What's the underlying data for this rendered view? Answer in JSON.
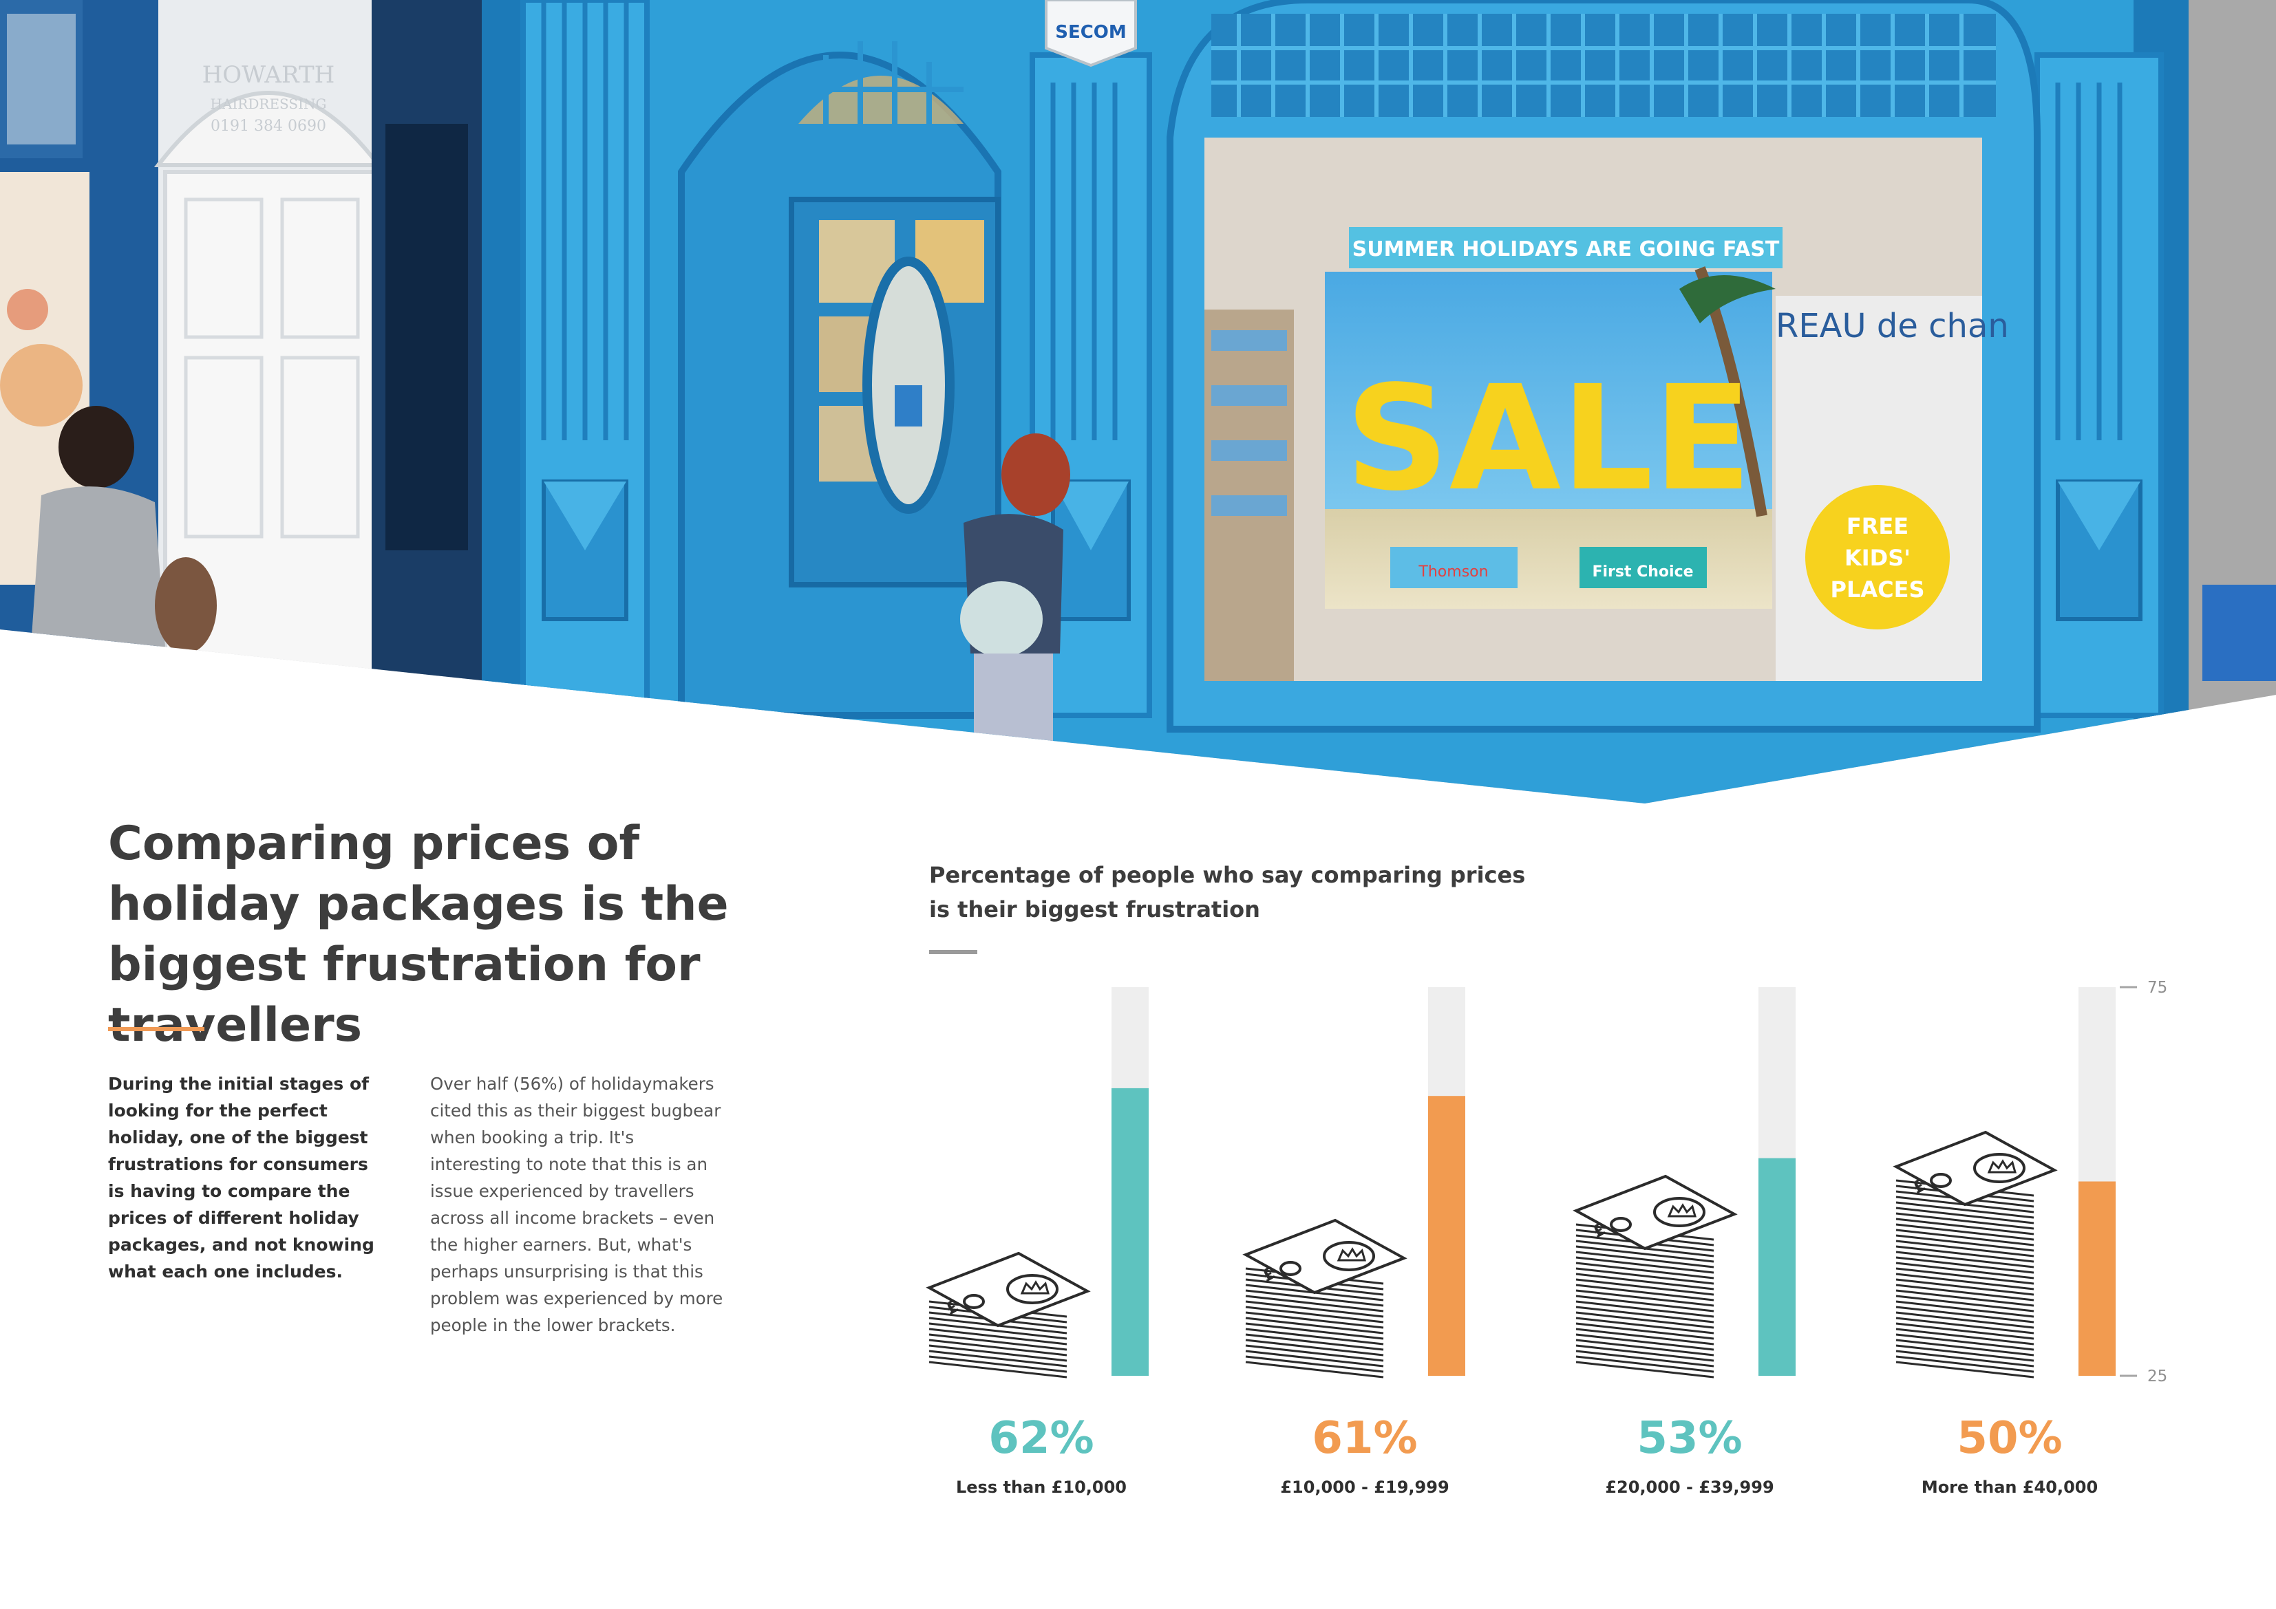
{
  "hero": {
    "alarm_label": "SECOM",
    "hair_shop_name": "HOWARTH",
    "hair_shop_sub": "HAIRDRESSING",
    "hair_shop_phone": "0191 384 0690",
    "banner_text": "SUMMER HOLIDAYS ARE GOING FAST",
    "sale_text": "SALE",
    "brand_1": "Thomson",
    "brand_2": "First Choice",
    "circle_lines": [
      "FREE",
      "KIDS'",
      "PLACES"
    ],
    "bureau_text": "REAU de chan",
    "colors": {
      "shopfront": "#2f9fd8",
      "shopfront_dark": "#1c7ab8",
      "sale": "#f7d21e"
    }
  },
  "article": {
    "headline": "Comparing prices of holiday packages is the biggest frustration for travellers",
    "intro": "During the initial stages of looking for the perfect holiday, one of the biggest frustrations for consumers is having to compare the prices of different holiday packages, and not knowing what each one includes.",
    "body": "Over half (56%) of holidaymakers cited this as their biggest bugbear when booking a trip. It's interesting to note that this is an issue experienced by travellers across all income brackets – even the higher earners. But, what's perhaps unsurprising is that this problem was experienced by more people in the lower brackets."
  },
  "chart_data": {
    "type": "bar",
    "title": "Percentage of people who say comparing prices is their biggest frustration",
    "categories": [
      "Less than £10,000",
      "£10,000 - £19,999",
      "£20,000 - £39,999",
      "More than £40,000"
    ],
    "values": [
      62,
      61,
      53,
      50
    ],
    "value_labels": [
      "62%",
      "61%",
      "53%",
      "50%"
    ],
    "ylim": [
      25,
      75
    ],
    "y_ticks": [
      75,
      25
    ],
    "bar_colors": [
      "#5ec3bf",
      "#f29b50",
      "#5ec3bf",
      "#f29b50"
    ],
    "track_color": "#eeeeee",
    "money_stack_icon": "banknote-stack-icon",
    "money_symbol": "£",
    "grid": false,
    "legend": "none"
  }
}
